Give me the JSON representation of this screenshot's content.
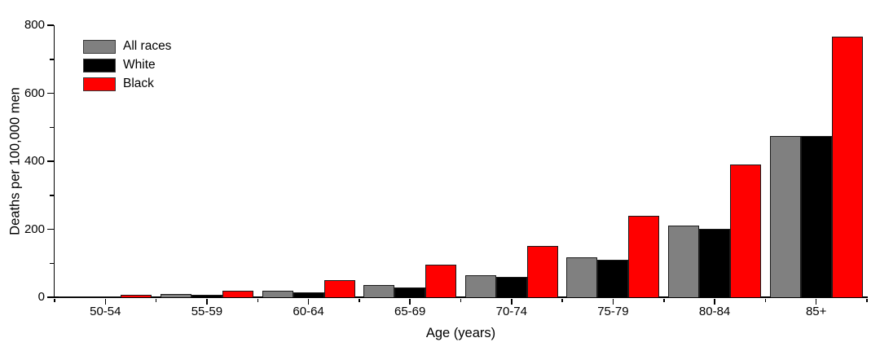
{
  "chart_data": {
    "type": "bar",
    "title": "",
    "xlabel": "Age (years)",
    "ylabel": "Deaths per 100,000 men",
    "categories": [
      "50-54",
      "55-59",
      "60-64",
      "65-69",
      "70-74",
      "75-79",
      "80-84",
      "85+"
    ],
    "series": [
      {
        "name": "All races",
        "color": "#808080",
        "values": [
          2,
          10,
          20,
          36,
          65,
          118,
          210,
          475
        ]
      },
      {
        "name": "White",
        "color": "#000000",
        "values": [
          2,
          7,
          15,
          30,
          60,
          110,
          202,
          474
        ]
      },
      {
        "name": "Black",
        "color": "#ff0000",
        "values": [
          8,
          20,
          50,
          97,
          150,
          240,
          390,
          766
        ]
      }
    ],
    "ylim": [
      0,
      800
    ],
    "y_major_ticks": [
      0,
      200,
      400,
      600,
      800
    ],
    "y_minor_ticks": [
      100,
      300,
      500,
      700
    ],
    "legend_position": "top-left",
    "grid": false,
    "axis_color": "#000000",
    "bar_outline_color": "#1a1a1a",
    "background_color": "#ffffff"
  }
}
